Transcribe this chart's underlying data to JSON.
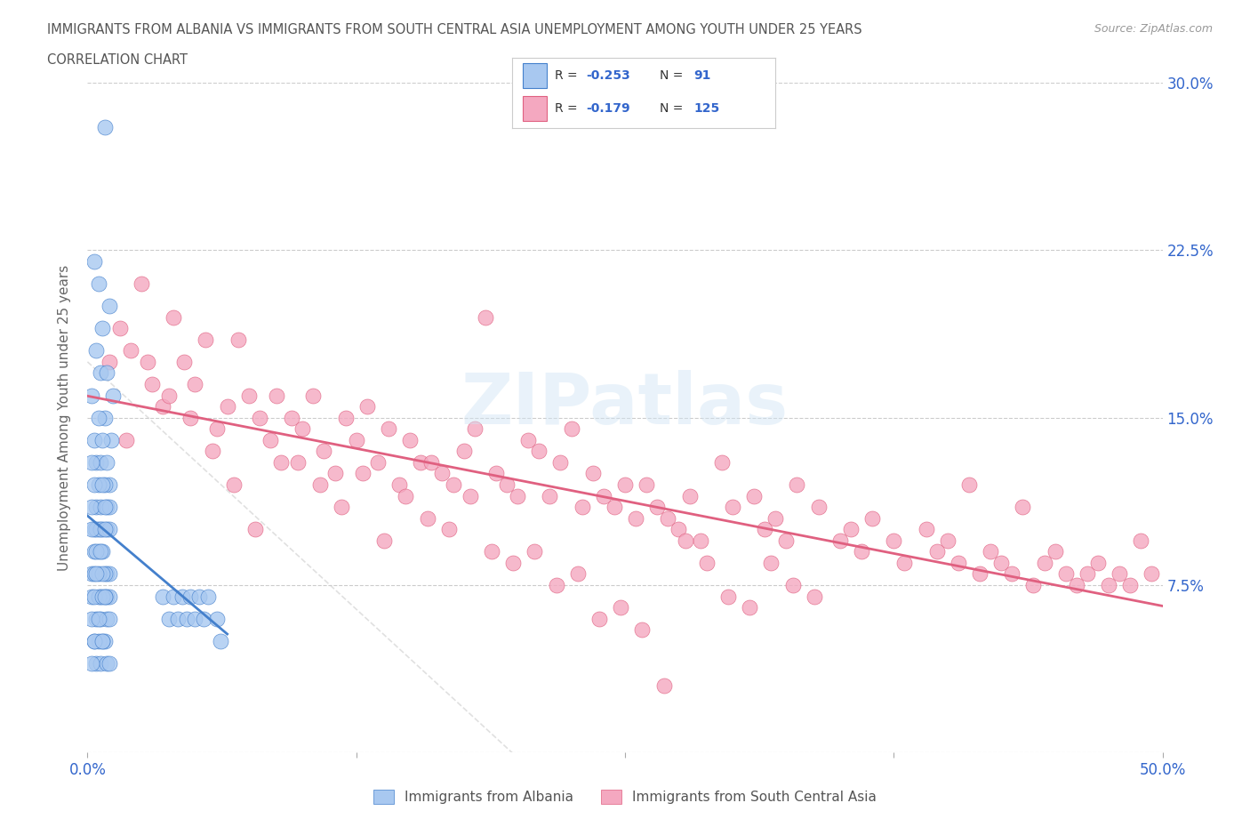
{
  "title_line1": "IMMIGRANTS FROM ALBANIA VS IMMIGRANTS FROM SOUTH CENTRAL ASIA UNEMPLOYMENT AMONG YOUTH UNDER 25 YEARS",
  "title_line2": "CORRELATION CHART",
  "source_text": "Source: ZipAtlas.com",
  "watermark": "ZIPatlas",
  "ylabel": "Unemployment Among Youth under 25 years",
  "xlim": [
    0.0,
    0.5
  ],
  "ylim": [
    0.0,
    0.3
  ],
  "ytick_positions": [
    0.0,
    0.075,
    0.15,
    0.225,
    0.3
  ],
  "ytick_labels_right": [
    "",
    "7.5%",
    "15.0%",
    "22.5%",
    "30.0%"
  ],
  "r_albania": -0.253,
  "n_albania": 91,
  "r_south_central_asia": -0.179,
  "n_south_central_asia": 125,
  "color_albania": "#a8c8f0",
  "color_south_central_asia": "#f4a8c0",
  "color_trend_albania": "#4480cc",
  "color_trend_sca": "#e06080",
  "color_diagonal": "#cccccc",
  "background_color": "#ffffff",
  "legend_text_color": "#3366cc",
  "title_color": "#555555",
  "ylabel_color": "#666666",
  "albania_x": [
    0.008,
    0.005,
    0.003,
    0.01,
    0.007,
    0.004,
    0.006,
    0.009,
    0.002,
    0.012,
    0.008,
    0.005,
    0.011,
    0.003,
    0.007,
    0.004,
    0.006,
    0.009,
    0.002,
    0.01,
    0.008,
    0.005,
    0.003,
    0.007,
    0.004,
    0.006,
    0.009,
    0.002,
    0.01,
    0.008,
    0.005,
    0.003,
    0.007,
    0.004,
    0.006,
    0.009,
    0.002,
    0.01,
    0.008,
    0.005,
    0.003,
    0.007,
    0.004,
    0.006,
    0.009,
    0.002,
    0.01,
    0.008,
    0.005,
    0.003,
    0.007,
    0.004,
    0.006,
    0.009,
    0.002,
    0.01,
    0.008,
    0.005,
    0.003,
    0.007,
    0.004,
    0.006,
    0.009,
    0.002,
    0.01,
    0.008,
    0.005,
    0.003,
    0.007,
    0.004,
    0.006,
    0.009,
    0.002,
    0.01,
    0.008,
    0.005,
    0.003,
    0.007,
    0.035,
    0.038,
    0.04,
    0.042,
    0.044,
    0.046,
    0.048,
    0.05,
    0.052,
    0.054,
    0.056,
    0.06,
    0.062
  ],
  "albania_y": [
    0.28,
    0.21,
    0.22,
    0.2,
    0.19,
    0.18,
    0.17,
    0.17,
    0.16,
    0.16,
    0.15,
    0.15,
    0.14,
    0.14,
    0.14,
    0.13,
    0.13,
    0.13,
    0.13,
    0.12,
    0.12,
    0.12,
    0.12,
    0.12,
    0.11,
    0.11,
    0.11,
    0.11,
    0.11,
    0.11,
    0.1,
    0.1,
    0.1,
    0.1,
    0.1,
    0.1,
    0.1,
    0.1,
    0.1,
    0.09,
    0.09,
    0.09,
    0.09,
    0.09,
    0.08,
    0.08,
    0.08,
    0.08,
    0.08,
    0.08,
    0.08,
    0.08,
    0.07,
    0.07,
    0.07,
    0.07,
    0.07,
    0.07,
    0.07,
    0.07,
    0.06,
    0.06,
    0.06,
    0.06,
    0.06,
    0.05,
    0.05,
    0.05,
    0.05,
    0.04,
    0.04,
    0.04,
    0.04,
    0.04,
    0.07,
    0.06,
    0.05,
    0.05,
    0.07,
    0.06,
    0.07,
    0.06,
    0.07,
    0.06,
    0.07,
    0.06,
    0.07,
    0.06,
    0.07,
    0.06,
    0.05
  ],
  "sca_x": [
    0.01,
    0.015,
    0.02,
    0.025,
    0.03,
    0.035,
    0.04,
    0.045,
    0.05,
    0.055,
    0.06,
    0.065,
    0.07,
    0.075,
    0.08,
    0.085,
    0.09,
    0.095,
    0.1,
    0.105,
    0.11,
    0.115,
    0.12,
    0.125,
    0.13,
    0.135,
    0.14,
    0.145,
    0.15,
    0.155,
    0.16,
    0.165,
    0.17,
    0.175,
    0.18,
    0.185,
    0.19,
    0.195,
    0.2,
    0.205,
    0.21,
    0.215,
    0.22,
    0.225,
    0.23,
    0.235,
    0.24,
    0.245,
    0.25,
    0.255,
    0.26,
    0.265,
    0.27,
    0.275,
    0.28,
    0.285,
    0.295,
    0.3,
    0.31,
    0.315,
    0.32,
    0.325,
    0.33,
    0.34,
    0.35,
    0.355,
    0.36,
    0.365,
    0.375,
    0.38,
    0.39,
    0.395,
    0.4,
    0.405,
    0.41,
    0.415,
    0.42,
    0.425,
    0.43,
    0.435,
    0.44,
    0.445,
    0.45,
    0.455,
    0.46,
    0.465,
    0.47,
    0.475,
    0.48,
    0.485,
    0.49,
    0.495,
    0.018,
    0.028,
    0.038,
    0.048,
    0.058,
    0.068,
    0.078,
    0.088,
    0.098,
    0.108,
    0.118,
    0.128,
    0.138,
    0.148,
    0.158,
    0.168,
    0.178,
    0.188,
    0.198,
    0.208,
    0.218,
    0.228,
    0.238,
    0.248,
    0.258,
    0.268,
    0.278,
    0.288,
    0.298,
    0.308,
    0.318,
    0.328,
    0.338
  ],
  "sca_y": [
    0.175,
    0.19,
    0.18,
    0.21,
    0.165,
    0.155,
    0.195,
    0.175,
    0.165,
    0.185,
    0.145,
    0.155,
    0.185,
    0.16,
    0.15,
    0.14,
    0.13,
    0.15,
    0.145,
    0.16,
    0.135,
    0.125,
    0.15,
    0.14,
    0.155,
    0.13,
    0.145,
    0.12,
    0.14,
    0.13,
    0.13,
    0.125,
    0.12,
    0.135,
    0.145,
    0.195,
    0.125,
    0.12,
    0.115,
    0.14,
    0.135,
    0.115,
    0.13,
    0.145,
    0.11,
    0.125,
    0.115,
    0.11,
    0.12,
    0.105,
    0.12,
    0.11,
    0.105,
    0.1,
    0.115,
    0.095,
    0.13,
    0.11,
    0.115,
    0.1,
    0.105,
    0.095,
    0.12,
    0.11,
    0.095,
    0.1,
    0.09,
    0.105,
    0.095,
    0.085,
    0.1,
    0.09,
    0.095,
    0.085,
    0.12,
    0.08,
    0.09,
    0.085,
    0.08,
    0.11,
    0.075,
    0.085,
    0.09,
    0.08,
    0.075,
    0.08,
    0.085,
    0.075,
    0.08,
    0.075,
    0.095,
    0.08,
    0.14,
    0.175,
    0.16,
    0.15,
    0.135,
    0.12,
    0.1,
    0.16,
    0.13,
    0.12,
    0.11,
    0.125,
    0.095,
    0.115,
    0.105,
    0.1,
    0.115,
    0.09,
    0.085,
    0.09,
    0.075,
    0.08,
    0.06,
    0.065,
    0.055,
    0.03,
    0.095,
    0.085,
    0.07,
    0.065,
    0.085,
    0.075,
    0.07
  ]
}
